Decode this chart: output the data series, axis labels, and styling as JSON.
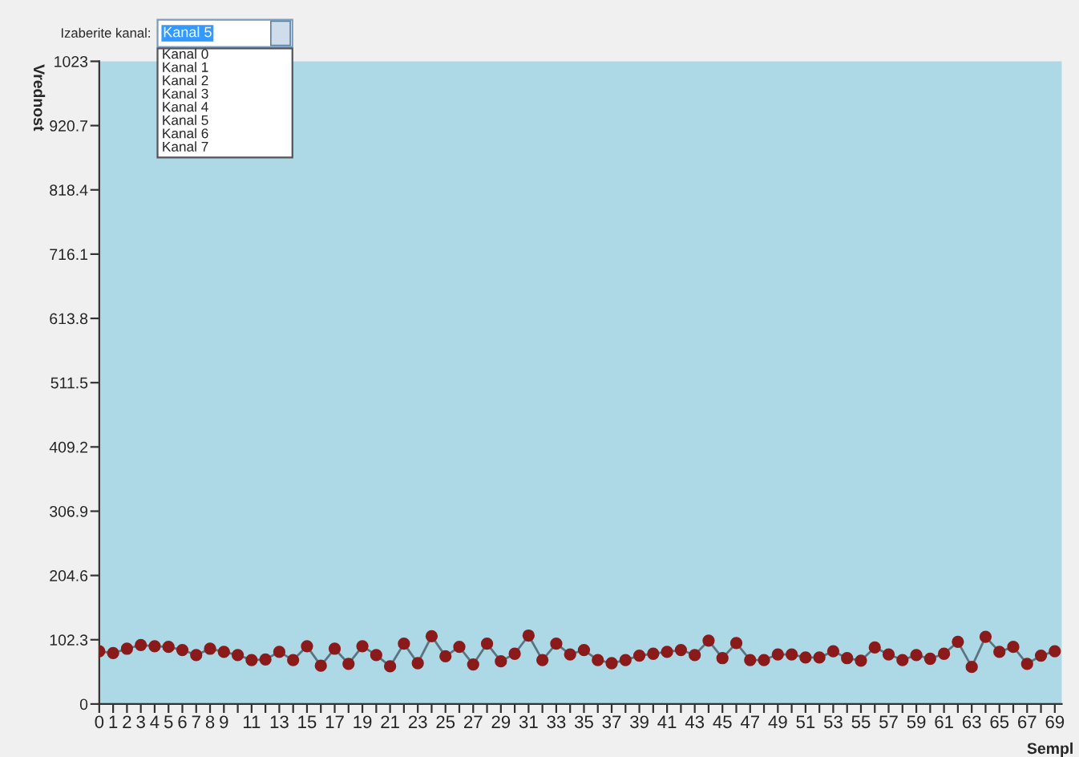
{
  "chart_data": {
    "type": "line",
    "ylabel": "Vrednost",
    "xlabel": "Sempl",
    "annotations": [
      "Izaberite kanal:",
      "Kanal 5",
      "Kanal 0",
      "Kanal 1",
      "Kanal 2",
      "Kanal 3",
      "Kanal 4",
      "Kanal 5",
      "Kanal 6",
      "Kanal 7"
    ],
    "x": [
      0,
      1,
      2,
      3,
      4,
      5,
      6,
      7,
      8,
      9,
      10,
      11,
      12,
      13,
      14,
      15,
      16,
      17,
      18,
      19,
      20,
      21,
      22,
      23,
      24,
      25,
      26,
      27,
      28,
      29,
      30,
      31,
      32,
      33,
      34,
      35,
      36,
      37,
      38,
      39,
      40,
      41,
      42,
      43,
      44,
      45,
      46,
      47,
      48,
      49,
      50,
      51,
      52,
      53,
      54,
      55,
      56,
      57,
      58,
      59,
      60,
      61,
      62,
      63,
      64,
      65,
      66,
      67,
      68,
      69
    ],
    "series": [
      {
        "color": "#8b1a1a",
        "values": [
          84,
          81,
          88,
          94,
          92,
          91,
          86,
          78,
          88,
          83,
          78,
          70,
          71,
          83,
          70,
          92,
          61,
          88,
          64,
          92,
          78,
          60,
          96,
          65,
          108,
          76,
          91,
          63,
          96,
          68,
          80,
          109,
          70,
          96,
          79,
          86,
          70,
          65,
          70,
          77,
          80,
          83,
          86,
          78,
          101,
          73,
          97,
          70,
          70,
          79,
          79,
          74,
          74,
          84,
          73,
          69,
          90,
          79,
          70,
          78,
          72,
          80,
          99,
          59,
          107,
          83,
          91,
          64,
          77,
          84
        ]
      }
    ],
    "xlim": [
      0,
      69.5
    ],
    "ylim": [
      0,
      1023
    ],
    "xticks": [
      0,
      1,
      2,
      3,
      4,
      5,
      6,
      7,
      8,
      9,
      {
        "value": 10,
        "label": null
      },
      11,
      {
        "value": 12,
        "label": null
      },
      13,
      {
        "value": 14,
        "label": null
      },
      15,
      {
        "value": 16,
        "label": null
      },
      17,
      {
        "value": 18,
        "label": null
      },
      19,
      {
        "value": 20,
        "label": null
      },
      21,
      {
        "value": 22,
        "label": null
      },
      23,
      {
        "value": 24,
        "label": null
      },
      25,
      {
        "value": 26,
        "label": null
      },
      27,
      {
        "value": 28,
        "label": null
      },
      29,
      {
        "value": 30,
        "label": null
      },
      31,
      {
        "value": 32,
        "label": null
      },
      33,
      {
        "value": 34,
        "label": null
      },
      35,
      {
        "value": 36,
        "label": null
      },
      37,
      {
        "value": 38,
        "label": null
      },
      39,
      {
        "value": 40,
        "label": null
      },
      41,
      {
        "value": 42,
        "label": null
      },
      43,
      {
        "value": 44,
        "label": null
      },
      45,
      {
        "value": 46,
        "label": null
      },
      47,
      {
        "value": 48,
        "label": null
      },
      49,
      {
        "value": 50,
        "label": null
      },
      51,
      {
        "value": 52,
        "label": null
      },
      53,
      {
        "value": 54,
        "label": null
      },
      55,
      {
        "value": 56,
        "label": null
      },
      57,
      {
        "value": 58,
        "label": null
      },
      59,
      {
        "value": 60,
        "label": null
      },
      61,
      {
        "value": 62,
        "label": null
      },
      63,
      {
        "value": 64,
        "label": null
      },
      65,
      {
        "value": 66,
        "label": null
      },
      67,
      {
        "value": 68,
        "label": null
      },
      69
    ],
    "yticks": [
      0,
      102.3,
      204.6,
      306.9,
      409.2,
      511.5,
      613.8,
      716.1,
      818.4,
      920.7,
      1023
    ],
    "grid": false,
    "marker": "circle",
    "line_style": "solid"
  }
}
